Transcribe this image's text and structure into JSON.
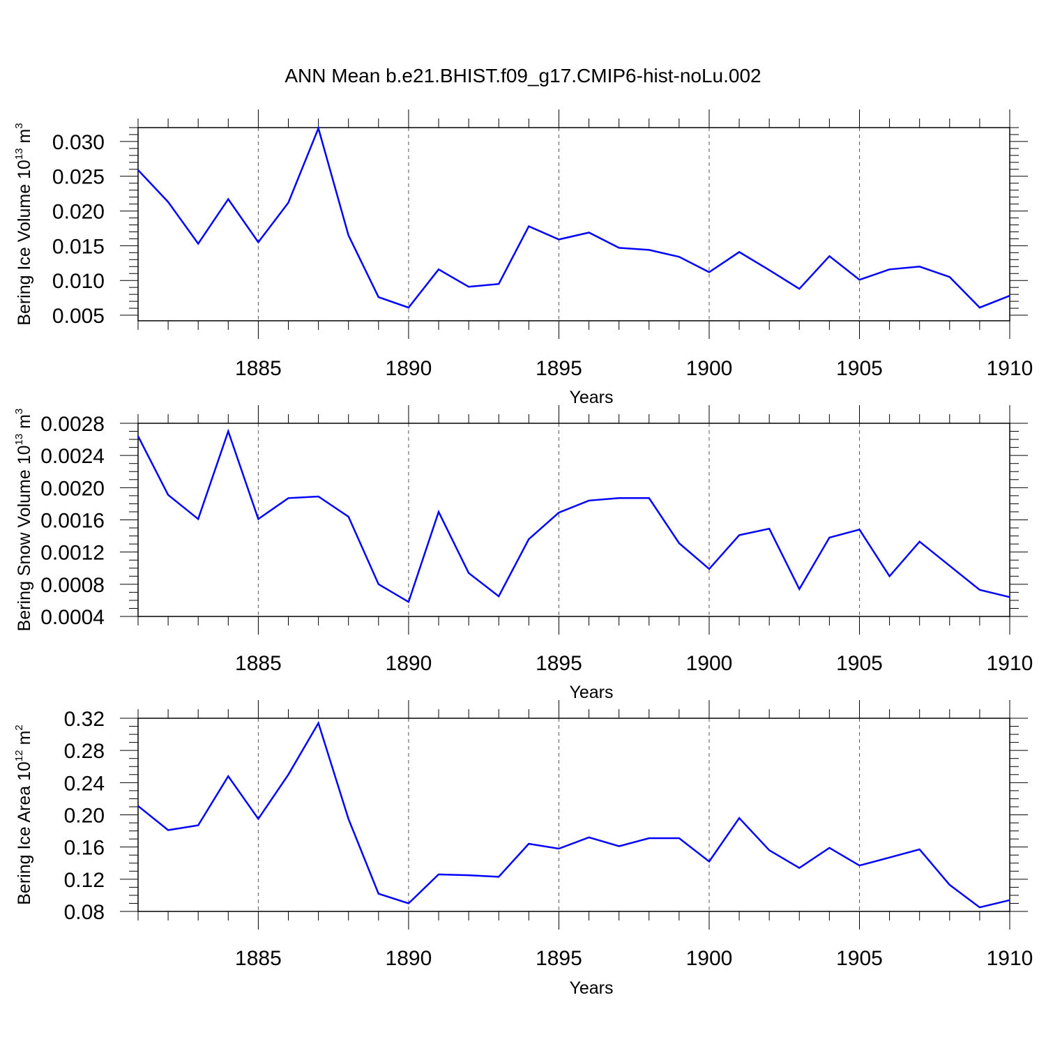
{
  "title": "ANN Mean b.e21.BHIST.f09_g17.CMIP6-hist-noLu.002",
  "colors": {
    "line": "#0000ff",
    "axis": "#000000",
    "grid": "#555555",
    "background": "#ffffff"
  },
  "chart_data": [
    {
      "type": "line",
      "ylabel": "Bering Ice Volume 10",
      "ylabel_exp": "13",
      "ylabel_unit": " m",
      "ylabel_unit_exp": "3",
      "xlabel": "Years",
      "xlim": [
        1881,
        1910
      ],
      "ylim": [
        0.0042,
        0.032
      ],
      "x_ticks": [
        1885,
        1890,
        1895,
        1900,
        1905,
        1910
      ],
      "y_ticks": [
        0.005,
        0.01,
        0.015,
        0.02,
        0.025,
        0.03
      ],
      "y_tick_labels": [
        "0.005",
        "0.010",
        "0.015",
        "0.020",
        "0.025",
        "0.030"
      ],
      "y_minor_step": 0.001,
      "x_grid": "dashed",
      "x": [
        1881,
        1882,
        1883,
        1884,
        1885,
        1886,
        1887,
        1888,
        1889,
        1890,
        1891,
        1892,
        1893,
        1894,
        1895,
        1896,
        1897,
        1898,
        1899,
        1900,
        1901,
        1902,
        1903,
        1904,
        1905,
        1906,
        1907,
        1908,
        1909,
        1910
      ],
      "series": [
        {
          "values": [
            0.0259,
            0.0213,
            0.0153,
            0.0217,
            0.0155,
            0.0212,
            0.0319,
            0.0165,
            0.0076,
            0.0061,
            0.0116,
            0.0091,
            0.0095,
            0.0178,
            0.0159,
            0.0169,
            0.0147,
            0.0144,
            0.0134,
            0.0112,
            0.0141,
            0.0115,
            0.0088,
            0.0135,
            0.0101,
            0.0116,
            0.012,
            0.0105,
            0.0061,
            0.0078
          ]
        }
      ]
    },
    {
      "type": "line",
      "ylabel": "Bering Snow Volume 10",
      "ylabel_exp": "13",
      "ylabel_unit": " m",
      "ylabel_unit_exp": "3",
      "xlabel": "Years",
      "xlim": [
        1881,
        1910
      ],
      "ylim": [
        0.0004,
        0.0028
      ],
      "x_ticks": [
        1885,
        1890,
        1895,
        1900,
        1905,
        1910
      ],
      "y_ticks": [
        0.0004,
        0.0008,
        0.0012,
        0.0016,
        0.002,
        0.0024,
        0.0028
      ],
      "y_tick_labels": [
        "0.0004",
        "0.0008",
        "0.0012",
        "0.0016",
        "0.0020",
        "0.0024",
        "0.0028"
      ],
      "y_minor_step": 0.0001,
      "x_grid": "dashed",
      "x": [
        1881,
        1882,
        1883,
        1884,
        1885,
        1886,
        1887,
        1888,
        1889,
        1890,
        1891,
        1892,
        1893,
        1894,
        1895,
        1896,
        1897,
        1898,
        1899,
        1900,
        1901,
        1902,
        1903,
        1904,
        1905,
        1906,
        1907,
        1908,
        1909,
        1910
      ],
      "series": [
        {
          "values": [
            0.00264,
            0.00191,
            0.00161,
            0.0027,
            0.00161,
            0.00187,
            0.00189,
            0.00164,
            0.0008,
            0.00058,
            0.0017,
            0.00094,
            0.00065,
            0.00136,
            0.00169,
            0.00184,
            0.00187,
            0.00187,
            0.00131,
            0.00099,
            0.00141,
            0.00149,
            0.00074,
            0.00138,
            0.00148,
            0.0009,
            0.00133,
            0.00103,
            0.00073,
            0.00064
          ]
        }
      ]
    },
    {
      "type": "line",
      "ylabel": "Bering Ice Area 10",
      "ylabel_exp": "12",
      "ylabel_unit": " m",
      "ylabel_unit_exp": "2",
      "xlabel": "Years",
      "xlim": [
        1881,
        1910
      ],
      "ylim": [
        0.08,
        0.32
      ],
      "x_ticks": [
        1885,
        1890,
        1895,
        1900,
        1905,
        1910
      ],
      "y_ticks": [
        0.08,
        0.12,
        0.16,
        0.2,
        0.24,
        0.28,
        0.32
      ],
      "y_tick_labels": [
        "0.08",
        "0.12",
        "0.16",
        "0.20",
        "0.24",
        "0.28",
        "0.32"
      ],
      "y_minor_step": 0.01,
      "x_grid": "dashed",
      "x": [
        1881,
        1882,
        1883,
        1884,
        1885,
        1886,
        1887,
        1888,
        1889,
        1890,
        1891,
        1892,
        1893,
        1894,
        1895,
        1896,
        1897,
        1898,
        1899,
        1900,
        1901,
        1902,
        1903,
        1904,
        1905,
        1906,
        1907,
        1908,
        1909,
        1910
      ],
      "series": [
        {
          "values": [
            0.211,
            0.181,
            0.187,
            0.248,
            0.195,
            0.25,
            0.314,
            0.195,
            0.102,
            0.09,
            0.126,
            0.125,
            0.123,
            0.164,
            0.158,
            0.172,
            0.161,
            0.171,
            0.171,
            0.142,
            0.196,
            0.156,
            0.134,
            0.159,
            0.137,
            0.147,
            0.157,
            0.113,
            0.085,
            0.094
          ]
        }
      ]
    }
  ]
}
